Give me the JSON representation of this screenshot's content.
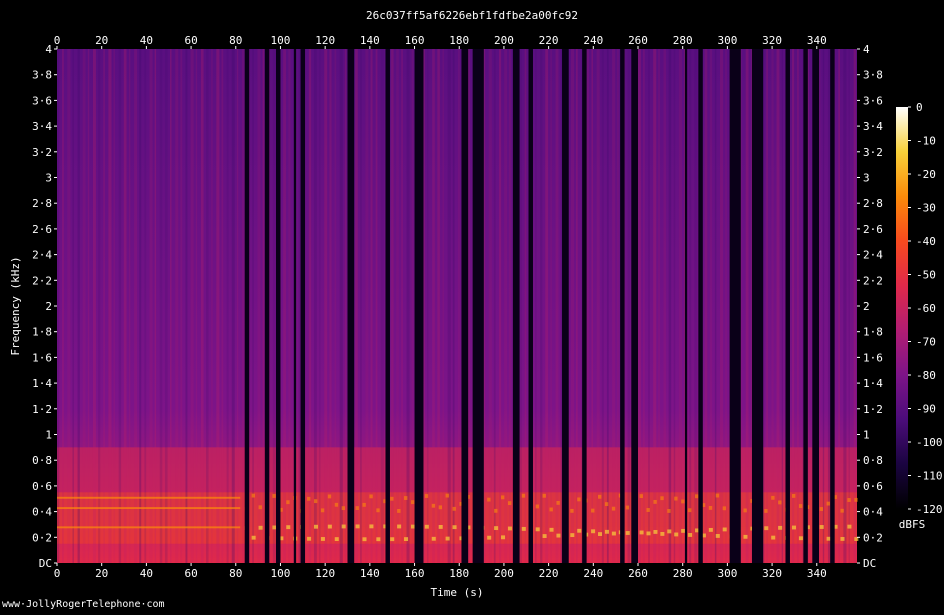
{
  "chart_data": {
    "type": "heatmap",
    "title": "26c037ff5af6226ebf1fdfbe2a00fc92",
    "xlabel": "Time (s)",
    "ylabel": "Frequency (kHz)",
    "x_ticks": [
      "0",
      "20",
      "40",
      "60",
      "80",
      "100",
      "120",
      "140",
      "160",
      "180",
      "200",
      "220",
      "240",
      "260",
      "280",
      "300",
      "320",
      "340"
    ],
    "x_tick_values": [
      0,
      20,
      40,
      60,
      80,
      100,
      120,
      140,
      160,
      180,
      200,
      220,
      240,
      260,
      280,
      300,
      320,
      340
    ],
    "xlim": [
      0,
      358
    ],
    "y_ticks": [
      "DC",
      "0·2",
      "0·4",
      "0·6",
      "0·8",
      "1",
      "1·2",
      "1·4",
      "1·6",
      "1·8",
      "2",
      "2·2",
      "2·4",
      "2·6",
      "2·8",
      "3",
      "3·2",
      "3·4",
      "3·6",
      "3·8",
      "4"
    ],
    "y_tick_values": [
      0,
      0.2,
      0.4,
      0.6,
      0.8,
      1,
      1.2,
      1.4,
      1.6,
      1.8,
      2,
      2.2,
      2.4,
      2.6,
      2.8,
      3,
      3.2,
      3.4,
      3.6,
      3.8,
      4
    ],
    "ylim": [
      0,
      4
    ],
    "colorbar": {
      "label": "dBFS",
      "ticks": [
        "0",
        "-10",
        "-20",
        "-30",
        "-40",
        "-50",
        "-60",
        "-70",
        "-80",
        "-90",
        "-100",
        "-110",
        "-120"
      ],
      "tick_values": [
        0,
        -10,
        -20,
        -30,
        -40,
        -50,
        -60,
        -70,
        -80,
        -90,
        -100,
        -110,
        -120
      ],
      "range": [
        -120,
        0
      ],
      "colors": [
        "#000000",
        "#1a0440",
        "#4b0c7a",
        "#7d1488",
        "#b11d73",
        "#e0294a",
        "#f74a1e",
        "#fb8b0a",
        "#f8d13a",
        "#ffffff"
      ]
    },
    "silent_gaps_s": [
      [
        84,
        86
      ],
      [
        93,
        95
      ],
      [
        98,
        100
      ],
      [
        106,
        107
      ],
      [
        109,
        111
      ],
      [
        130,
        133
      ],
      [
        147,
        149
      ],
      [
        160,
        164
      ],
      [
        181,
        184
      ],
      [
        186,
        191
      ],
      [
        204,
        207
      ],
      [
        211,
        213
      ],
      [
        226,
        229
      ],
      [
        235,
        237
      ],
      [
        252,
        254
      ],
      [
        257,
        260
      ],
      [
        281,
        282
      ],
      [
        287,
        289
      ],
      [
        301,
        306
      ],
      [
        311,
        316
      ],
      [
        326,
        328
      ],
      [
        334,
        336
      ],
      [
        338,
        341
      ],
      [
        346,
        348
      ]
    ]
  },
  "footer": {
    "credit": "www·JollyRogerTelephone·com"
  }
}
